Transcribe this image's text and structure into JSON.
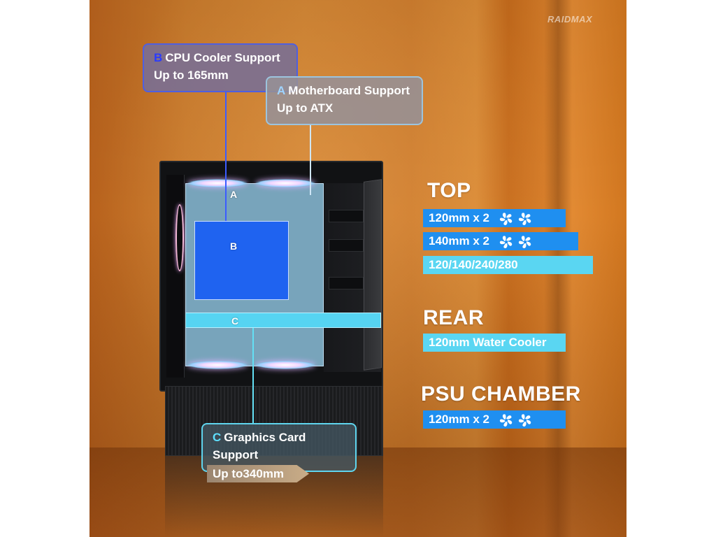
{
  "brand": {
    "logo_text": "RAIDMAX"
  },
  "case_labels": {
    "a": "A",
    "b": "B",
    "c": "C"
  },
  "callouts": {
    "cpu": {
      "letter": "B",
      "title": "CPU Cooler Support",
      "value": "Up to 165mm",
      "letter_color": "#2a3bff"
    },
    "motherboard": {
      "letter": "A",
      "title": "Motherboard Support",
      "value": "Up to ATX",
      "letter_color": "#9fd4ff"
    },
    "gpu": {
      "letter": "C",
      "title": "Graphics Card Support",
      "value": "Up to340mm",
      "letter_color": "#5fe0ff"
    }
  },
  "specs": {
    "top": {
      "title": "TOP",
      "items": [
        {
          "label": "120mm x 2",
          "fans": 2
        },
        {
          "label": "140mm x 2",
          "fans": 2
        },
        {
          "label": "120/140/240/280",
          "fans": 0
        }
      ]
    },
    "rear": {
      "title": "REAR",
      "items": [
        {
          "label": "120mm Water Cooler",
          "fans": 0
        }
      ]
    },
    "psu": {
      "title": "PSU CHAMBER",
      "items": [
        {
          "label": "120mm x 2",
          "fans": 2
        }
      ]
    }
  },
  "colors": {
    "pill_blue": "#1f8ff0",
    "pill_cyan": "#5ad6f2",
    "box_b": "#1f63f0",
    "bar_c": "#56d4f2"
  },
  "icons": {
    "fan": "fan-icon"
  }
}
